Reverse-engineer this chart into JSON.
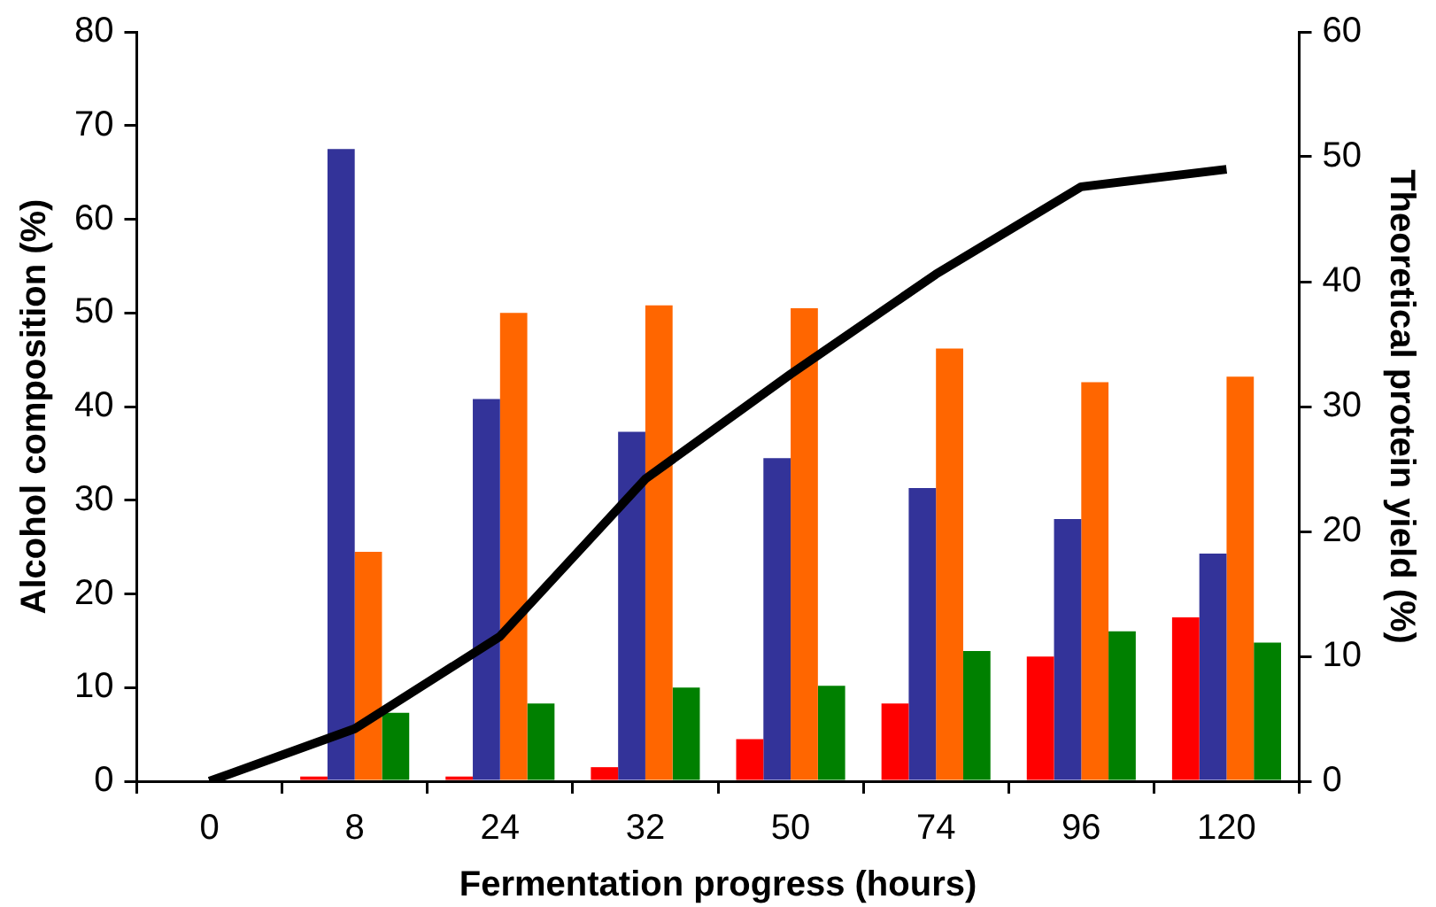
{
  "chart_data": {
    "type": "bar",
    "xlabel": "Fermentation progress (hours)",
    "ylabel": "Alcohol composition (%)",
    "y2label": "Theoretical protein yield (%)",
    "categories": [
      "0",
      "8",
      "24",
      "32",
      "50",
      "74",
      "96",
      "120"
    ],
    "series": [
      {
        "color": "#ff0000",
        "values": [
          null,
          0.5,
          0.5,
          1.5,
          4.5,
          8.3,
          13.3,
          17.5
        ]
      },
      {
        "color": "#333399",
        "values": [
          null,
          67.5,
          40.8,
          37.3,
          34.5,
          31.3,
          28,
          24.3
        ]
      },
      {
        "color": "#ff6600",
        "values": [
          null,
          24.5,
          50,
          50.8,
          50.5,
          46.2,
          42.6,
          43.2
        ]
      },
      {
        "color": "#008000",
        "values": [
          null,
          7.3,
          8.3,
          10,
          10.2,
          13.9,
          16,
          14.8
        ]
      },
      {
        "type": "line",
        "axis": "y2",
        "color": "#000000",
        "values": [
          0,
          4.2,
          11.6,
          24.2,
          32.6,
          40.6,
          47.6,
          49
        ]
      }
    ],
    "ylim": [
      0,
      80
    ],
    "yticks": [
      0,
      10,
      20,
      30,
      40,
      50,
      60,
      70,
      80
    ],
    "y2lim": [
      0,
      60
    ],
    "y2ticks": [
      0,
      10,
      20,
      30,
      40,
      50,
      60
    ],
    "grid": false,
    "legend": false,
    "marker": "none",
    "line_style": "solid"
  }
}
